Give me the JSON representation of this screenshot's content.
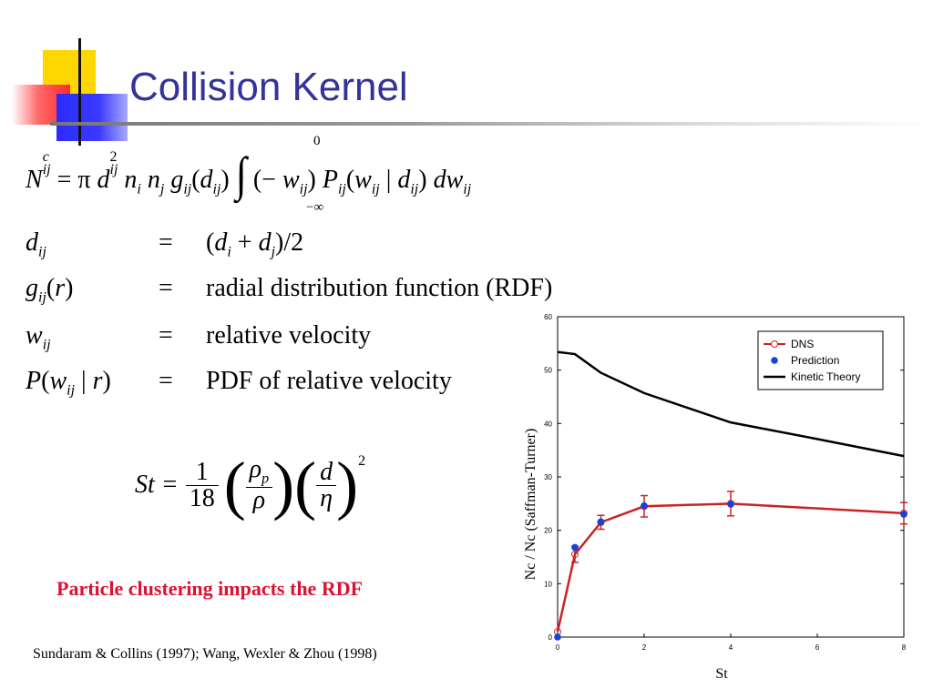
{
  "slide": {
    "title": "Collision Kernel",
    "highlight": "Particle clustering impacts the RDF",
    "references": "Sundaram & Collins (1997); Wang, Wexler & Zhou (1998)"
  },
  "equations": {
    "main": {
      "lhs": "N",
      "lhs_sup": "c",
      "lhs_sub": "ij",
      "rhs_prefix": "= π d",
      "d_sub": "ij",
      "d_sup": "2",
      "int_upper": "0",
      "int_lower": "−∞"
    },
    "definitions": [
      {
        "lhs": "d_ij",
        "eq": "=",
        "rhs": "(d_i + d_j)/2"
      },
      {
        "lhs": "g_ij(r)",
        "eq": "=",
        "rhs": "radial distribution function (RDF)"
      },
      {
        "lhs": "w_ij",
        "eq": "=",
        "rhs": "relative velocity"
      },
      {
        "lhs": "P(w_ij | r)",
        "eq": "=",
        "rhs": "PDF of relative velocity"
      }
    ],
    "stokes": {
      "lhs": "St =",
      "num": "1",
      "den": "18",
      "rho_p": "ρ",
      "rho_p_sub": "p",
      "rho": "ρ",
      "d": "d",
      "eta": "η",
      "power": "2"
    }
  },
  "chart_data": {
    "type": "line",
    "xlabel": "St",
    "ylabel": "Nc / Nc (Saffman-Turner)",
    "xlim": [
      0,
      8
    ],
    "ylim": [
      0,
      60
    ],
    "xticks": [
      0,
      2,
      4,
      6,
      8
    ],
    "yticks": [
      0,
      10,
      20,
      30,
      40,
      50,
      60
    ],
    "legend_placement": "top-right",
    "series": [
      {
        "name": "DNS",
        "style": "line-with-error-bars",
        "color": "#cc2222",
        "x": [
          0,
          0.4,
          1,
          2,
          4,
          8
        ],
        "y": [
          1,
          15.5,
          21.5,
          24.5,
          25,
          23.2
        ],
        "err": [
          0,
          1.5,
          1.3,
          2,
          2.3,
          2
        ]
      },
      {
        "name": "Prediction",
        "style": "points",
        "color": "#1144dd",
        "x": [
          0,
          0.4,
          1,
          2,
          4,
          8
        ],
        "y": [
          0,
          16.8,
          21.6,
          24.6,
          24.9,
          23
        ]
      },
      {
        "name": "Kinetic Theory",
        "style": "line",
        "color": "#000000",
        "x": [
          0,
          0.4,
          1,
          2,
          4,
          6,
          8
        ],
        "y": [
          53.4,
          53,
          49.5,
          45.7,
          40.2,
          37.1,
          33.9
        ]
      }
    ]
  }
}
